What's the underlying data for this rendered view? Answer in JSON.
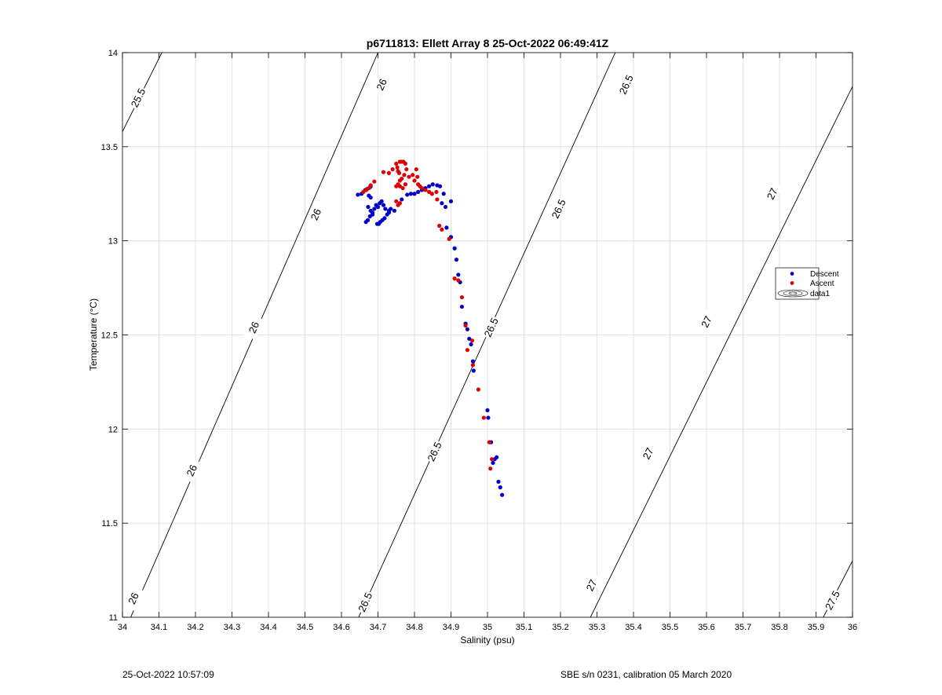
{
  "chart_data": {
    "type": "scatter",
    "title": "p6711813: Ellett Array 8 25-Oct-2022 06:49:41Z",
    "xlabel": "Salinity (psu)",
    "ylabel": "Temperature (°C)",
    "xlim": [
      34,
      36
    ],
    "ylim": [
      11,
      14
    ],
    "xticks": [
      "34",
      "34.1",
      "34.2",
      "34.3",
      "34.4",
      "34.5",
      "34.6",
      "34.7",
      "34.8",
      "34.9",
      "35",
      "35.1",
      "35.2",
      "35.3",
      "35.4",
      "35.5",
      "35.6",
      "35.7",
      "35.8",
      "35.9",
      "36"
    ],
    "yticks": [
      "11",
      "11.5",
      "12",
      "12.5",
      "13",
      "13.5",
      "14"
    ],
    "grid": true,
    "legend_position": "right",
    "legend": [
      "Descent",
      "Ascent",
      "data1"
    ],
    "colors": {
      "descent": "#0000cc",
      "ascent": "#dd0000",
      "contour": "#000000",
      "grid": "#dcdcdc"
    },
    "contours": [
      {
        "label": "25.5",
        "points": [
          [
            34.0,
            13.58
          ],
          [
            34.108,
            14.0
          ]
        ],
        "label_positions": [
          [
            34.043,
            13.76
          ]
        ]
      },
      {
        "label": "26",
        "points": [
          [
            34.0,
            10.9
          ],
          [
            34.7,
            14.0
          ]
        ],
        "label_positions": [
          [
            34.03,
            11.1
          ],
          [
            34.19,
            11.78
          ],
          [
            34.36,
            12.54
          ],
          [
            34.53,
            13.14
          ],
          [
            34.71,
            13.83
          ]
        ]
      },
      {
        "label": "26.5",
        "points": [
          [
            34.647,
            11.0
          ],
          [
            35.35,
            14.0
          ]
        ],
        "label_positions": [
          [
            34.665,
            11.08
          ],
          [
            34.855,
            11.88
          ],
          [
            35.01,
            12.54
          ],
          [
            35.195,
            13.17
          ],
          [
            35.38,
            13.83
          ]
        ]
      },
      {
        "label": "27",
        "points": [
          [
            35.282,
            11.0
          ],
          [
            36.0,
            13.82
          ]
        ],
        "label_positions": [
          [
            35.285,
            11.17
          ],
          [
            35.44,
            11.87
          ],
          [
            35.6,
            12.57
          ],
          [
            35.78,
            13.25
          ]
        ]
      },
      {
        "label": "27.5",
        "points": [
          [
            35.92,
            11.0
          ],
          [
            36.0,
            11.3
          ]
        ],
        "label_positions": [
          [
            35.945,
            11.09
          ]
        ]
      }
    ],
    "series": [
      {
        "name": "Descent",
        "points": [
          [
            34.645,
            13.245
          ],
          [
            34.655,
            13.25
          ],
          [
            34.66,
            13.26
          ],
          [
            34.665,
            13.27
          ],
          [
            34.67,
            13.275
          ],
          [
            34.678,
            13.285
          ],
          [
            34.68,
            13.29
          ],
          [
            34.675,
            13.24
          ],
          [
            34.68,
            13.23
          ],
          [
            34.673,
            13.18
          ],
          [
            34.68,
            13.16
          ],
          [
            34.685,
            13.15
          ],
          [
            34.69,
            13.17
          ],
          [
            34.695,
            13.19
          ],
          [
            34.7,
            13.18
          ],
          [
            34.705,
            13.2
          ],
          [
            34.71,
            13.21
          ],
          [
            34.715,
            13.19
          ],
          [
            34.72,
            13.17
          ],
          [
            34.73,
            13.16
          ],
          [
            34.745,
            13.16
          ],
          [
            34.667,
            13.1
          ],
          [
            34.672,
            13.11
          ],
          [
            34.678,
            13.13
          ],
          [
            34.685,
            13.14
          ],
          [
            34.698,
            13.09
          ],
          [
            34.702,
            13.09
          ],
          [
            34.706,
            13.1
          ],
          [
            34.712,
            13.11
          ],
          [
            34.718,
            13.12
          ],
          [
            34.725,
            13.14
          ],
          [
            34.73,
            13.15
          ],
          [
            34.735,
            13.17
          ],
          [
            34.765,
            13.22
          ],
          [
            34.78,
            13.245
          ],
          [
            34.79,
            13.25
          ],
          [
            34.8,
            13.25
          ],
          [
            34.81,
            13.26
          ],
          [
            34.82,
            13.27
          ],
          [
            34.83,
            13.28
          ],
          [
            34.84,
            13.29
          ],
          [
            34.85,
            13.3
          ],
          [
            34.862,
            13.295
          ],
          [
            34.87,
            13.29
          ],
          [
            34.88,
            13.25
          ],
          [
            34.875,
            13.2
          ],
          [
            34.885,
            13.18
          ],
          [
            34.9,
            13.21
          ],
          [
            34.888,
            13.07
          ],
          [
            34.9,
            13.02
          ],
          [
            34.91,
            12.96
          ],
          [
            34.915,
            12.9
          ],
          [
            34.92,
            12.82
          ],
          [
            34.925,
            12.78
          ],
          [
            34.93,
            12.65
          ],
          [
            34.94,
            12.56
          ],
          [
            34.945,
            12.53
          ],
          [
            34.95,
            12.48
          ],
          [
            34.955,
            12.45
          ],
          [
            34.96,
            12.36
          ],
          [
            34.962,
            12.31
          ],
          [
            35.0,
            12.1
          ],
          [
            35.002,
            12.06
          ],
          [
            35.01,
            11.93
          ],
          [
            35.02,
            11.84
          ],
          [
            35.025,
            11.85
          ],
          [
            35.015,
            11.82
          ],
          [
            35.03,
            11.72
          ],
          [
            35.035,
            11.69
          ],
          [
            35.04,
            11.65
          ]
        ]
      },
      {
        "name": "Ascent",
        "points": [
          [
            34.66,
            13.26
          ],
          [
            34.668,
            13.27
          ],
          [
            34.675,
            13.28
          ],
          [
            34.68,
            13.295
          ],
          [
            34.69,
            13.315
          ],
          [
            34.715,
            13.365
          ],
          [
            34.73,
            13.36
          ],
          [
            34.74,
            13.38
          ],
          [
            34.75,
            13.41
          ],
          [
            34.753,
            13.39
          ],
          [
            34.755,
            13.37
          ],
          [
            34.758,
            13.36
          ],
          [
            34.76,
            13.42
          ],
          [
            34.765,
            13.42
          ],
          [
            34.77,
            13.42
          ],
          [
            34.775,
            13.41
          ],
          [
            34.778,
            13.38
          ],
          [
            34.772,
            13.35
          ],
          [
            34.765,
            13.33
          ],
          [
            34.76,
            13.32
          ],
          [
            34.755,
            13.3
          ],
          [
            34.75,
            13.29
          ],
          [
            34.76,
            13.29
          ],
          [
            34.768,
            13.28
          ],
          [
            34.775,
            13.3
          ],
          [
            34.785,
            13.34
          ],
          [
            34.795,
            13.35
          ],
          [
            34.805,
            13.38
          ],
          [
            34.808,
            13.34
          ],
          [
            34.8,
            13.32
          ],
          [
            34.81,
            13.3
          ],
          [
            34.815,
            13.29
          ],
          [
            34.82,
            13.28
          ],
          [
            34.83,
            13.27
          ],
          [
            34.84,
            13.26
          ],
          [
            34.848,
            13.25
          ],
          [
            34.86,
            13.26
          ],
          [
            34.75,
            13.21
          ],
          [
            34.755,
            13.19
          ],
          [
            34.76,
            13.2
          ],
          [
            34.862,
            13.22
          ],
          [
            34.868,
            13.08
          ],
          [
            34.875,
            13.06
          ],
          [
            34.895,
            13.01
          ],
          [
            34.91,
            12.8
          ],
          [
            34.92,
            12.79
          ],
          [
            34.93,
            12.7
          ],
          [
            34.94,
            12.55
          ],
          [
            34.945,
            12.42
          ],
          [
            34.958,
            12.47
          ],
          [
            34.96,
            12.34
          ],
          [
            34.975,
            12.21
          ],
          [
            34.99,
            12.06
          ],
          [
            35.005,
            11.93
          ],
          [
            35.012,
            11.84
          ],
          [
            35.008,
            11.79
          ]
        ]
      }
    ]
  },
  "footer": {
    "left": "25-Oct-2022 10:57:09",
    "right": "SBE s/n 0231, calibration 05 March 2020"
  }
}
